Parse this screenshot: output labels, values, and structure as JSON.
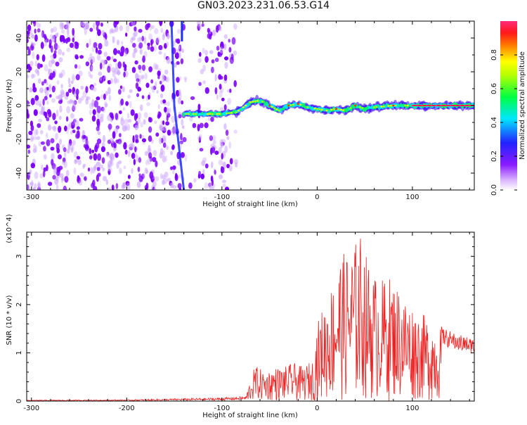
{
  "title": "GN03.2023.231.06.53.G14",
  "colors": {
    "snr_line": "#ee2222",
    "scatter_low": "#c9a2ff",
    "scatter_mid": "#7b00ff",
    "axis": "#000000"
  },
  "chart_data": [
    {
      "type": "heatmap",
      "xlabel": "Height of straight line (km)",
      "ylabel": "Frequency (Hz)",
      "xlim": [
        -305,
        165
      ],
      "ylim": [
        -50,
        50
      ],
      "x_ticks": [
        -300,
        -200,
        -100,
        0,
        100
      ],
      "x_tick_labels": [
        "-300",
        "-200",
        "-100",
        "0",
        "100"
      ],
      "y_ticks": [
        -40,
        -20,
        0,
        20,
        40
      ],
      "y_tick_labels": [
        "-40",
        "-20",
        "0",
        "20",
        "40"
      ],
      "colorbar": {
        "label": "Normalized spectral amplitude",
        "range": [
          0,
          1
        ],
        "ticks": [
          0.0,
          0.2,
          0.4,
          0.6,
          0.8
        ],
        "tick_labels": [
          "0.0",
          "0.2",
          "0.4",
          "0.6",
          "0.8"
        ],
        "colormap": "rainbow (white-magenta-blue-cyan-green-yellow-red-pink)"
      },
      "noise_region_x": [
        -305,
        -85
      ],
      "vertical_streak_x": [
        -150,
        -140
      ],
      "signal_ridge": {
        "x": [
          -140,
          -120,
          -100,
          -85,
          -70,
          -60,
          -50,
          -40,
          -30,
          -20,
          -10,
          0,
          10,
          20,
          30,
          40,
          50,
          60,
          80,
          100,
          120,
          140,
          165
        ],
        "freq_hz": [
          -5,
          -5,
          -5,
          -4,
          2,
          3,
          0,
          -3,
          0,
          1,
          -1,
          -2,
          -3,
          -2,
          -3,
          0,
          -2,
          -1,
          0,
          0,
          0,
          0,
          0
        ],
        "peak_amplitude_x_range": [
          100,
          165
        ]
      }
    },
    {
      "type": "line",
      "xlabel": "Height of straight line (km)",
      "ylabel": "SNR (10 * v/v)",
      "y_multiplier": "(x10^4)",
      "xlim": [
        -305,
        165
      ],
      "ylim": [
        0,
        3.5
      ],
      "x_ticks": [
        -300,
        -200,
        -100,
        0,
        100
      ],
      "x_tick_labels": [
        "-300",
        "-200",
        "-100",
        "0",
        "100"
      ],
      "y_ticks": [
        0,
        1,
        2,
        3
      ],
      "y_tick_labels": [
        "0",
        "1",
        "2",
        "3"
      ],
      "series": [
        {
          "envelope_x": [
            -305,
            -200,
            -150,
            -100,
            -75,
            -70,
            -65,
            -55,
            -45,
            -35,
            -25,
            -15,
            -5,
            0,
            5,
            15,
            25,
            35,
            45,
            55,
            65,
            75,
            85,
            95,
            105,
            115,
            125,
            135,
            145,
            155,
            165
          ],
          "envelope_y": [
            0.02,
            0.03,
            0.05,
            0.07,
            0.1,
            0.45,
            0.75,
            0.6,
            0.7,
            0.7,
            0.8,
            0.7,
            0.85,
            1.6,
            1.9,
            2.4,
            3.05,
            3.1,
            3.5,
            2.8,
            2.5,
            2.6,
            2.4,
            2.1,
            1.9,
            1.75,
            1.6,
            1.5,
            1.4,
            1.35,
            1.3
          ]
        }
      ]
    }
  ]
}
